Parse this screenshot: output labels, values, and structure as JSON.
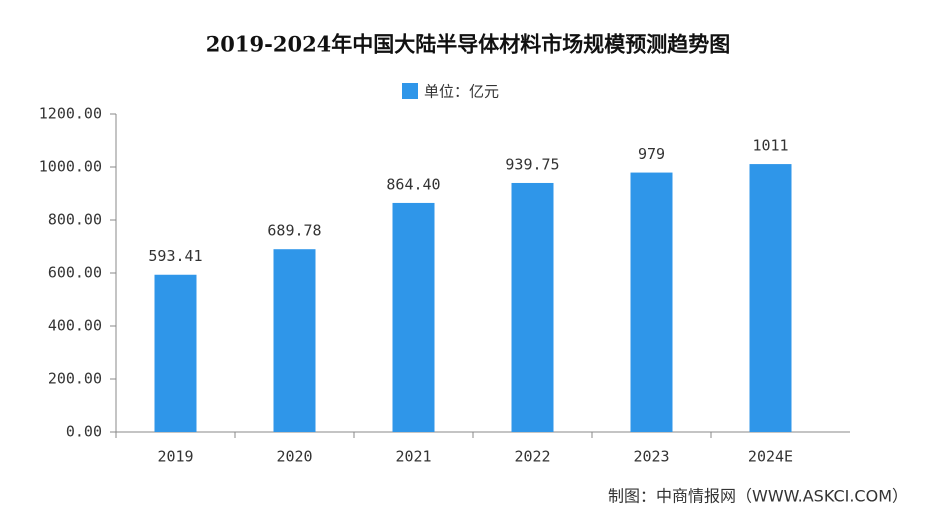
{
  "chart_data": {
    "type": "bar",
    "title": "2019-2024年中国大陆半导体材料市场规模预测趋势图",
    "categories": [
      "2019",
      "2020",
      "2021",
      "2022",
      "2023",
      "2024E"
    ],
    "series": [
      {
        "name": "单位：亿元",
        "color": "#2f96e9",
        "values": [
          593.41,
          689.78,
          864.4,
          939.75,
          979,
          1011
        ],
        "value_labels": [
          "593.41",
          "689.78",
          "864.40",
          "939.75",
          "979",
          "1011"
        ]
      }
    ],
    "ylim": [
      0,
      1200
    ],
    "yticks": [
      {
        "value": 0,
        "label": "0.00"
      },
      {
        "value": 200,
        "label": "200.00"
      },
      {
        "value": 400,
        "label": "400.00"
      },
      {
        "value": 600,
        "label": "600.00"
      },
      {
        "value": 800,
        "label": "800.00"
      },
      {
        "value": 1000,
        "label": "1000.00"
      },
      {
        "value": 1200,
        "label": "1200.00"
      }
    ],
    "source": "制图：中商情报网（WWW.ASKCI.COM）"
  }
}
